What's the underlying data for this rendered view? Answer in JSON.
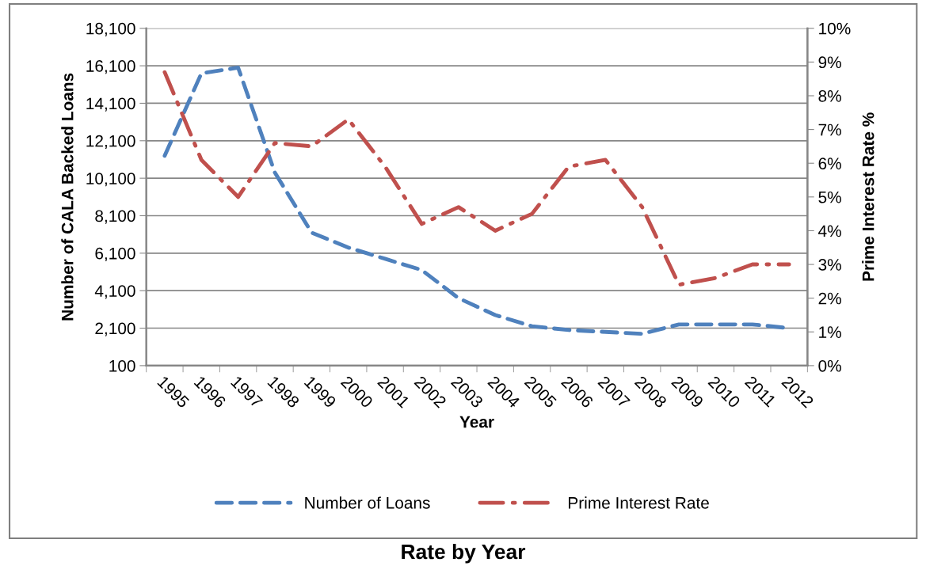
{
  "chart_data": {
    "type": "line",
    "title": "Rate by Year",
    "xlabel": "Year",
    "ylabel": "Number of CALA Backed Loans",
    "y2label": "Prime Interest Rate %",
    "categories": [
      "1995",
      "1996",
      "1997",
      "1998",
      "1999",
      "2000",
      "2001",
      "2002",
      "2003",
      "2004",
      "2005",
      "2006",
      "2007",
      "2008",
      "2009",
      "2010",
      "2011",
      "2012"
    ],
    "series": [
      {
        "name": "Number of Loans",
        "color": "#4f81bd",
        "line_style": "dashed",
        "values": [
          11300,
          15700,
          16000,
          10400,
          7200,
          6400,
          5800,
          5200,
          3700,
          2800,
          2200,
          2000,
          1900,
          1800,
          2300,
          2300,
          2300,
          2100
        ]
      },
      {
        "name": "Prime Interest Rate",
        "color": "#c0504d",
        "line_style": "dashdot",
        "axis": "y2",
        "values": [
          8.7,
          6.1,
          5.0,
          6.6,
          6.5,
          7.3,
          5.9,
          4.2,
          4.7,
          4.0,
          4.5,
          5.9,
          6.1,
          4.7,
          2.4,
          2.6,
          3.0,
          3.0
        ]
      }
    ],
    "ylim": [
      100,
      18100
    ],
    "yticks": [
      {
        "value": 100,
        "label": "100"
      },
      {
        "value": 2100,
        "label": "2,100"
      },
      {
        "value": 4100,
        "label": "4,100"
      },
      {
        "value": 6100,
        "label": "6,100"
      },
      {
        "value": 8100,
        "label": "8,100"
      },
      {
        "value": 10100,
        "label": "10,100"
      },
      {
        "value": 12100,
        "label": "12,100"
      },
      {
        "value": 14100,
        "label": "14,100"
      },
      {
        "value": 16100,
        "label": "16,100"
      },
      {
        "value": 18100,
        "label": "18,100"
      }
    ],
    "y2lim": [
      0,
      10
    ],
    "y2ticks": [
      {
        "value": 0,
        "label": "0%"
      },
      {
        "value": 1,
        "label": "1%"
      },
      {
        "value": 2,
        "label": "2%"
      },
      {
        "value": 3,
        "label": "3%"
      },
      {
        "value": 4,
        "label": "4%"
      },
      {
        "value": 5,
        "label": "5%"
      },
      {
        "value": 6,
        "label": "6%"
      },
      {
        "value": 7,
        "label": "7%"
      },
      {
        "value": 8,
        "label": "8%"
      },
      {
        "value": 9,
        "label": "9%"
      },
      {
        "value": 10,
        "label": "10%"
      }
    ],
    "grid": "y",
    "legend": "bottom",
    "marker": "none"
  }
}
